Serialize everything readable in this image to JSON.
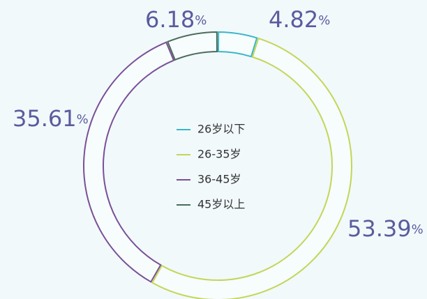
{
  "chart_data": {
    "type": "donut",
    "categories": [
      "26岁以下",
      "26-35岁",
      "36-45岁",
      "45岁以上"
    ],
    "values": [
      4.82,
      53.39,
      35.61,
      6.18
    ],
    "value_labels": [
      "4.82%",
      "53.39%",
      "35.61%",
      "6.18%"
    ],
    "colors": [
      "#3bb6c9",
      "#c3d657",
      "#7a4f97",
      "#4b6b5b"
    ],
    "legend": "center"
  }
}
